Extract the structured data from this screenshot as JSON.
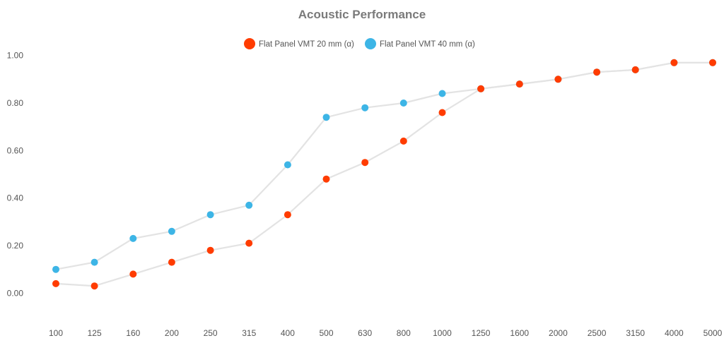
{
  "chart_data": {
    "type": "line",
    "title": "Acoustic Performance",
    "categories": [
      "100",
      "125",
      "160",
      "200",
      "250",
      "315",
      "400",
      "500",
      "630",
      "800",
      "1000",
      "1250",
      "1600",
      "2000",
      "2500",
      "3150",
      "4000",
      "5000"
    ],
    "ylim": [
      -0.1,
      1.1
    ],
    "yticks": [
      "0.00",
      "0.20",
      "0.40",
      "0.60",
      "0.80",
      "1.00"
    ],
    "grid": false,
    "legend_position": "top-center",
    "line_color": "#e3e3e3",
    "series": [
      {
        "name": "Flat Panel VMT 20 mm (α)",
        "color": "#ff3c00",
        "values": [
          0.04,
          0.03,
          0.08,
          0.13,
          0.18,
          0.21,
          0.33,
          0.48,
          0.55,
          0.64,
          0.76,
          0.86,
          0.88,
          0.9,
          0.93,
          0.94,
          0.97,
          0.97
        ]
      },
      {
        "name": "Flat Panel VMT 40 mm (α)",
        "color": "#3db5e6",
        "values": [
          0.1,
          0.13,
          0.23,
          0.26,
          0.33,
          0.37,
          0.54,
          0.74,
          0.78,
          0.8,
          0.84,
          0.86,
          0.88,
          0.9,
          0.93,
          0.94,
          0.97,
          0.97
        ]
      }
    ]
  }
}
